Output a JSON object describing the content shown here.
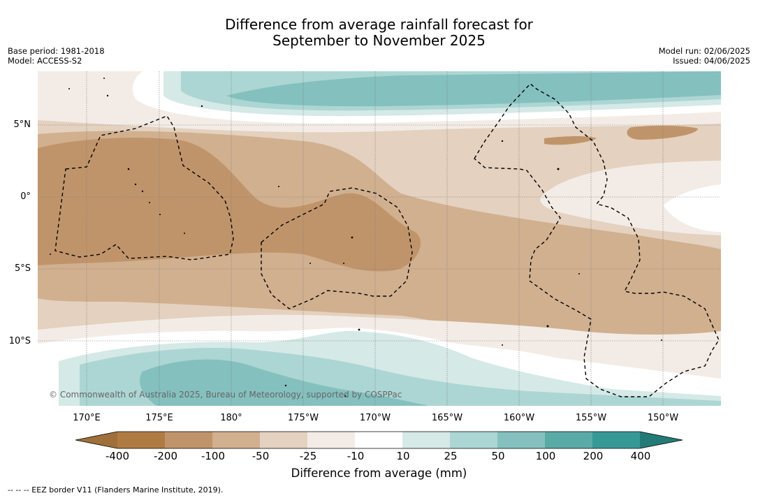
{
  "title_line1": "Difference from average rainfall forecast for",
  "title_line2": "September to November 2025",
  "base_period": "Base period: 1981-2018",
  "model": "Model: ACCESS-S2",
  "model_run": "Model run: 02/06/2025",
  "issued": "Issued: 04/06/2025",
  "lat_labels": [
    "5°N",
    "0°",
    "5°S",
    "10°S"
  ],
  "lon_labels": [
    "170°E",
    "175°E",
    "180°",
    "175°W",
    "170°W",
    "165°W",
    "160°W",
    "155°W",
    "150°W"
  ],
  "copyright": "© Commonwealth of Australia 2025, Bureau of Meteorology, supported by COSPPac",
  "colorbar": {
    "labels": [
      "-400",
      "-200",
      "-100",
      "-50",
      "-25",
      "-10",
      "10",
      "25",
      "50",
      "100",
      "200",
      "400"
    ],
    "colors": [
      "#a0703a",
      "#b07b43",
      "#c0946a",
      "#d1b08f",
      "#e4d1bf",
      "#f3ece6",
      "#ffffff",
      "#d5e9e7",
      "#acd6d3",
      "#84c0be",
      "#5aaba7",
      "#369995",
      "#237b77"
    ],
    "title": "Difference from average (mm)"
  },
  "footer": "--  --  -- EEZ border V11 (Flanders Marine Institute, 2019)."
}
